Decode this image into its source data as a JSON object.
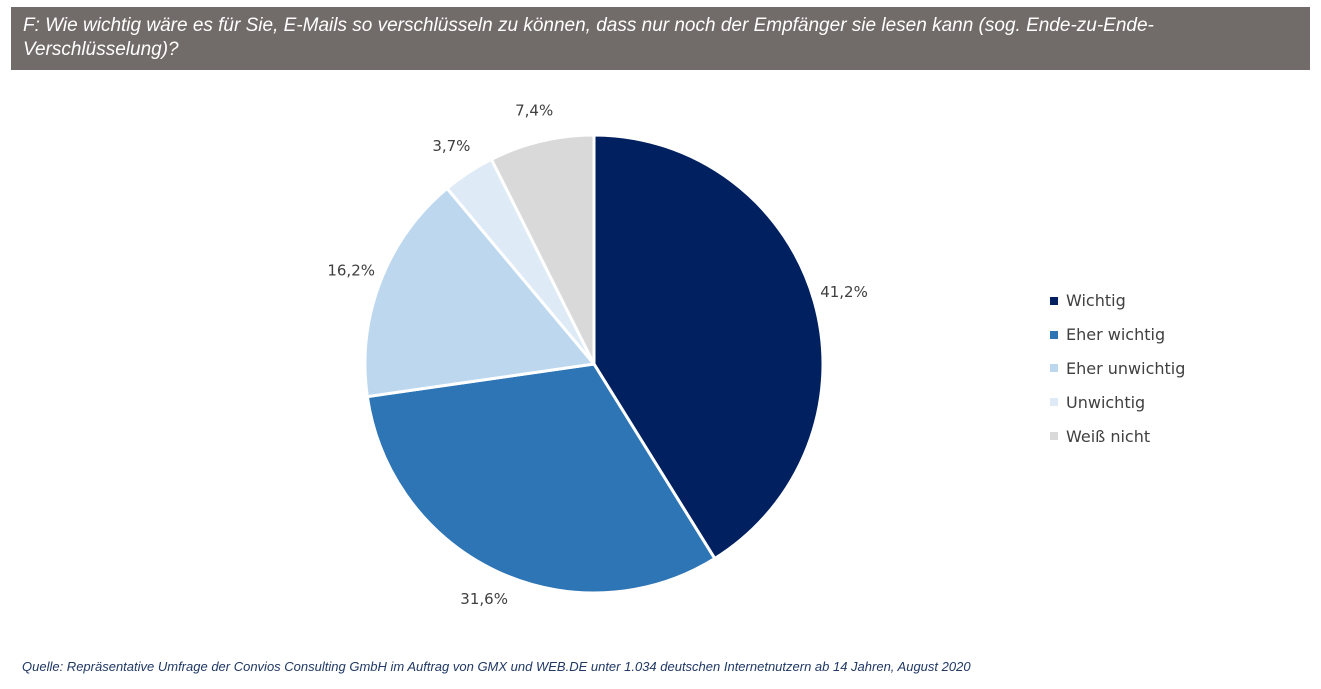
{
  "header": {
    "question": "F: Wie wichtig wäre es für Sie, E-Mails so verschlüsseln zu können, dass nur noch der Empfänger sie lesen kann (sog. Ende-zu-Ende-Verschlüsselung)?"
  },
  "chart_data": {
    "type": "pie",
    "categories": [
      "Wichtig",
      "Eher wichtig",
      "Eher unwichtig",
      "Unwichtig",
      "Weiß nicht"
    ],
    "values": [
      41.2,
      31.6,
      16.2,
      3.7,
      7.4
    ],
    "value_labels": [
      "41,2%",
      "31,6%",
      "16,2%",
      "3,7%",
      "7,4%"
    ],
    "colors": [
      "#002060",
      "#2e75b6",
      "#bdd7ee",
      "#deebf7",
      "#d9d9d9"
    ],
    "legend_position": "right"
  },
  "footer": {
    "source": "Quelle: Repräsentative Umfrage der Convios Consulting GmbH im Auftrag von GMX und WEB.DE unter 1.034 deutschen Internetnutzern ab 14 Jahren, August 2020"
  }
}
